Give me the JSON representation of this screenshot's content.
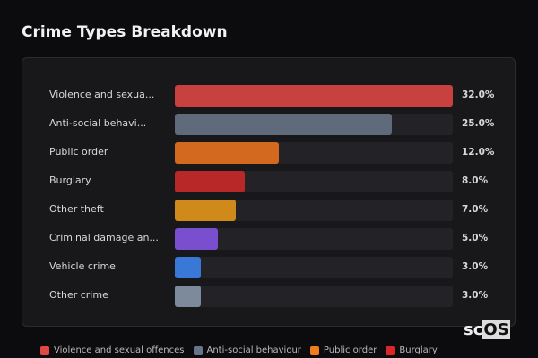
{
  "chart_data": {
    "type": "bar",
    "title": "Crime Types Breakdown",
    "categories": [
      "Violence and sexua...",
      "Anti-social behavi...",
      "Public order",
      "Burglary",
      "Other theft",
      "Criminal damage an...",
      "Vehicle crime",
      "Other crime"
    ],
    "values": [
      32.0,
      25.0,
      12.0,
      8.0,
      7.0,
      5.0,
      3.0,
      3.0
    ],
    "value_labels": [
      "32.0%",
      "25.0%",
      "12.0%",
      "8.0%",
      "7.0%",
      "5.0%",
      "3.0%",
      "3.0%"
    ],
    "colors": [
      "#c94040",
      "#5f6b7a",
      "#d2691e",
      "#b82828",
      "#d08a1a",
      "#7a4fcf",
      "#3a78d8",
      "#7d8a9b"
    ],
    "legend": [
      {
        "label": "Violence and sexual offences",
        "color": "#e04848"
      },
      {
        "label": "Anti-social behaviour",
        "color": "#64748b"
      },
      {
        "label": "Public order",
        "color": "#f07c1a"
      },
      {
        "label": "Burglary",
        "color": "#dc2626"
      }
    ],
    "xlim": [
      0,
      32
    ]
  },
  "logo": {
    "a": "sc",
    "b": "OS"
  }
}
